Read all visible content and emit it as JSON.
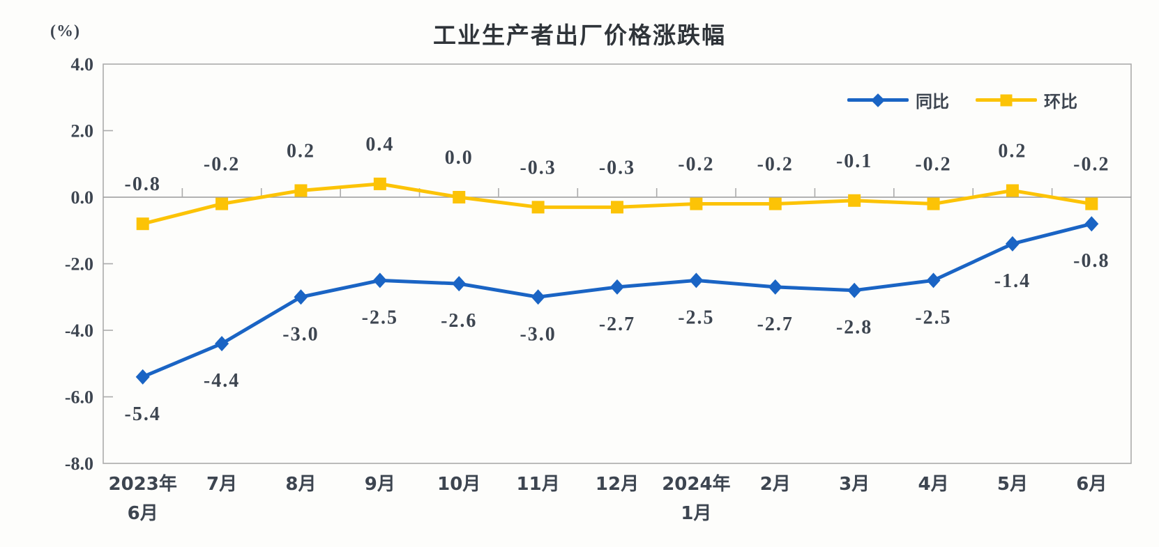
{
  "chart_data": {
    "type": "line",
    "title": "工业生产者出厂价格涨跌幅",
    "unit_label": "(%)",
    "categories": [
      [
        "2023年",
        "6月"
      ],
      [
        "7月"
      ],
      [
        "8月"
      ],
      [
        "9月"
      ],
      [
        "10月"
      ],
      [
        "11月"
      ],
      [
        "12月"
      ],
      [
        "2024年",
        "1月"
      ],
      [
        "2月"
      ],
      [
        "3月"
      ],
      [
        "4月"
      ],
      [
        "5月"
      ],
      [
        "6月"
      ]
    ],
    "series": [
      {
        "id": "yoy",
        "name": "同比",
        "color": "#1a64c4",
        "marker": "diamond",
        "values": [
          -5.4,
          -4.4,
          -3.0,
          -2.5,
          -2.6,
          -3.0,
          -2.7,
          -2.5,
          -2.7,
          -2.8,
          -2.5,
          -1.4,
          -0.8
        ],
        "labels": [
          "-5.4",
          "-4.4",
          "-3.0",
          "-2.5",
          "-2.6",
          "-3.0",
          "-2.7",
          "-2.5",
          "-2.7",
          "-2.8",
          "-2.5",
          "-1.4",
          "-0.8"
        ]
      },
      {
        "id": "mom",
        "name": "环比",
        "color": "#fcc306",
        "marker": "square",
        "values": [
          -0.8,
          -0.2,
          0.2,
          0.4,
          0.0,
          -0.3,
          -0.3,
          -0.2,
          -0.2,
          -0.1,
          -0.2,
          0.2,
          -0.2
        ],
        "labels": [
          "-0.8",
          "-0.2",
          "0.2",
          "0.4",
          "0.0",
          "-0.3",
          "-0.3",
          "-0.2",
          "-0.2",
          "-0.1",
          "-0.2",
          "0.2",
          "-0.2"
        ]
      }
    ],
    "ylim": [
      -8.0,
      4.0
    ],
    "yticks": [
      4.0,
      2.0,
      0.0,
      -2.0,
      -4.0,
      -6.0,
      -8.0
    ],
    "ytick_labels": [
      "4.0",
      "2.0",
      "0.0",
      "-2.0",
      "-4.0",
      "-6.0",
      "-8.0"
    ],
    "grid": false,
    "legend_position": "top-right-inside",
    "axis_color": "#ababab",
    "zero_line_color": "#9a9a9a",
    "text_color": "#3d4550"
  }
}
